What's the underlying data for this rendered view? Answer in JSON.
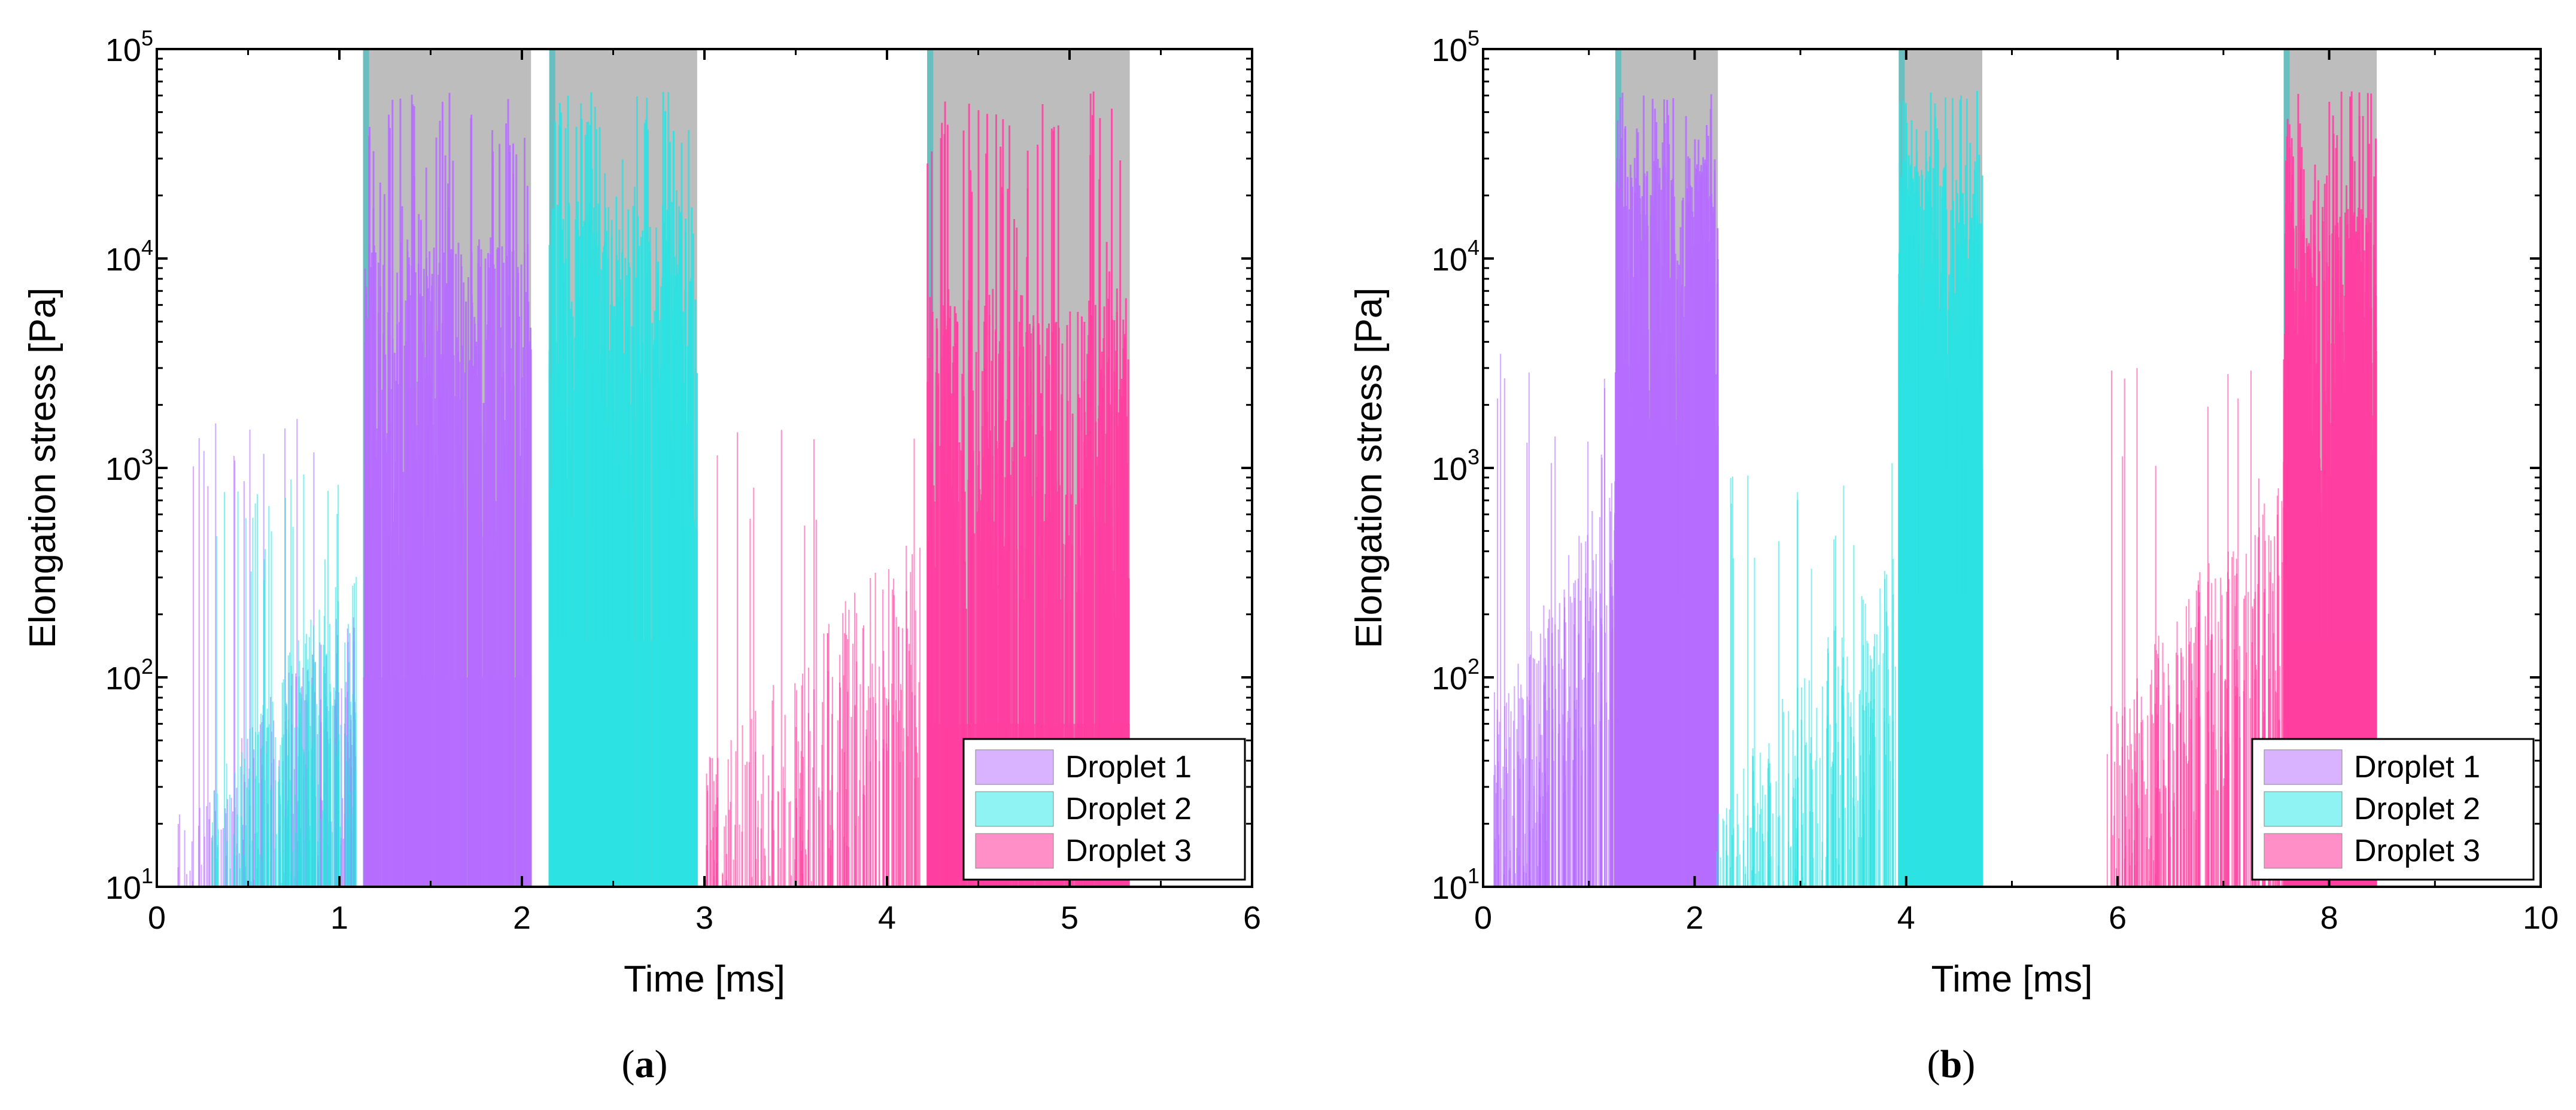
{
  "colors": {
    "droplet1": "#b66dff",
    "droplet2": "#2de2e2",
    "droplet3": "#ff3fa0",
    "saturated": "#bdbdbd",
    "legend_droplet1": "#d9b3ff",
    "legend_droplet2": "#8ff3f3",
    "legend_droplet3": "#ff8fc6"
  },
  "chart_data": [
    {
      "type": "bar",
      "panel": "(a)",
      "caption_letter": "a",
      "xlabel": "Time [ms]",
      "ylabel": "Elongation stress [Pa]",
      "xlim": [
        0,
        6
      ],
      "ylim": [
        10,
        100000
      ],
      "yscale": "log",
      "xticks": [
        "0",
        "1",
        "2",
        "3",
        "4",
        "5",
        "6"
      ],
      "yticks": [
        {
          "base": "10",
          "exp": "1"
        },
        {
          "base": "10",
          "exp": "2"
        },
        {
          "base": "10",
          "exp": "3"
        },
        {
          "base": "10",
          "exp": "4"
        },
        {
          "base": "10",
          "exp": "5"
        }
      ],
      "legend": {
        "position": "bottom-right",
        "entries": [
          "Droplet 1",
          "Droplet 2",
          "Droplet 3"
        ]
      },
      "saturated_regions": [
        [
          1.13,
          2.05
        ],
        [
          2.15,
          2.96
        ],
        [
          4.22,
          5.33
        ]
      ],
      "series": [
        {
          "name": "Droplet 1",
          "color_key": "droplet1",
          "sparse": [
            0.1,
            1.1
          ],
          "sparse_level": 40,
          "sparse_spike": 1500,
          "dense": [
            1.13,
            2.05
          ],
          "dense_level": 2000
        },
        {
          "name": "Droplet 2",
          "color_key": "droplet2",
          "sparse": [
            0.3,
            1.1
          ],
          "sparse_level": 60,
          "sparse_spike": 800,
          "dense": [
            2.15,
            2.96
          ],
          "dense_level": 3000
        },
        {
          "name": "Droplet 3",
          "color_key": "droplet3",
          "sparse": [
            3.0,
            4.2
          ],
          "sparse_level": 80,
          "sparse_spike": 1300,
          "dense": [
            4.22,
            5.33
          ],
          "dense_level": 1200
        }
      ]
    },
    {
      "type": "bar",
      "panel": "(b)",
      "caption_letter": "b",
      "xlabel": "Time [ms]",
      "ylabel": "Elongation stress [Pa]",
      "xlim": [
        0,
        10
      ],
      "ylim": [
        10,
        100000
      ],
      "yscale": "log",
      "xticks": [
        "0",
        "2",
        "4",
        "6",
        "8",
        "10"
      ],
      "yticks": [
        {
          "base": "10",
          "exp": "1"
        },
        {
          "base": "10",
          "exp": "2"
        },
        {
          "base": "10",
          "exp": "3"
        },
        {
          "base": "10",
          "exp": "4"
        },
        {
          "base": "10",
          "exp": "5"
        }
      ],
      "legend": {
        "position": "bottom-right",
        "entries": [
          "Droplet 1",
          "Droplet 2",
          "Droplet 3"
        ]
      },
      "saturated_regions": [
        [
          1.25,
          2.22
        ],
        [
          3.93,
          4.72
        ],
        [
          7.57,
          8.45
        ]
      ],
      "series": [
        {
          "name": "Droplet 1",
          "color_key": "droplet1",
          "sparse": [
            0.1,
            1.25
          ],
          "sparse_level": 150,
          "sparse_spike": 3000,
          "dense": [
            1.25,
            2.22
          ],
          "dense_level": 5000
        },
        {
          "name": "Droplet 2",
          "color_key": "droplet2",
          "sparse": [
            2.2,
            3.9
          ],
          "sparse_level": 60,
          "sparse_spike": 1000,
          "dense": [
            3.93,
            4.72
          ],
          "dense_level": 5000
        },
        {
          "name": "Droplet 3",
          "color_key": "droplet3",
          "sparse": [
            5.9,
            7.57
          ],
          "sparse_level": 150,
          "sparse_spike": 2500,
          "dense": [
            7.57,
            8.45
          ],
          "dense_level": 3000
        }
      ]
    }
  ]
}
